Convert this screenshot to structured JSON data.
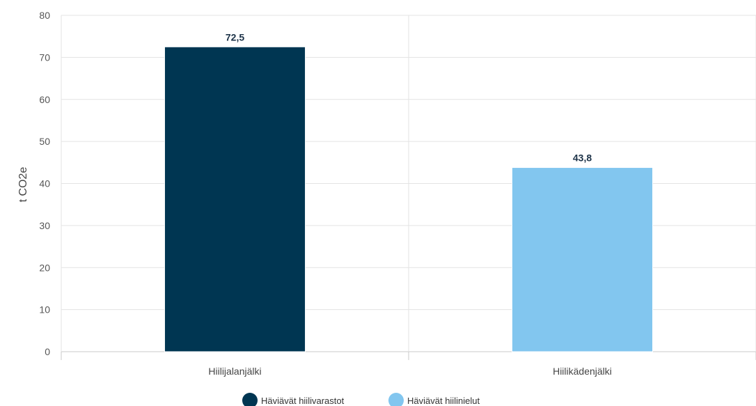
{
  "chart_data": {
    "type": "bar",
    "ylabel": "t CO2e",
    "ylim": [
      0,
      80
    ],
    "yticks": [
      0,
      10,
      20,
      30,
      40,
      50,
      60,
      70,
      80
    ],
    "grid": true,
    "legend_position": "bottom",
    "categories": [
      "Hiilijalanjälki",
      "Hiilikädenjälki"
    ],
    "values": [
      72.5,
      43.8
    ],
    "data_labels": [
      "72,5",
      "43,8"
    ],
    "bar_colors": [
      "#003652",
      "#82c6ef"
    ],
    "legend": [
      {
        "name": "Häviävät hiilivarastot",
        "color": "#003652"
      },
      {
        "name": "Häviävät hiilinielut",
        "color": "#82c6ef"
      }
    ]
  }
}
